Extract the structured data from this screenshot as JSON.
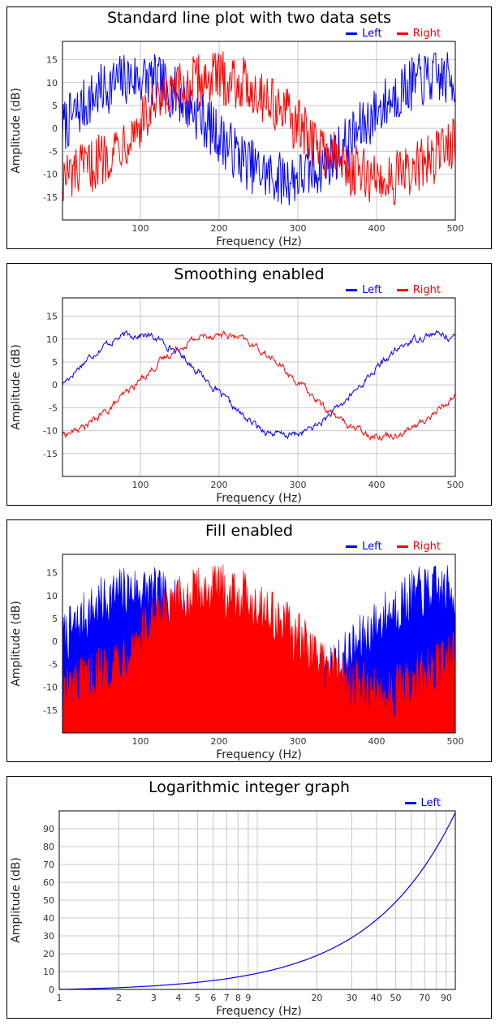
{
  "colors": {
    "left": "#0000ff",
    "right": "#ff0000",
    "grid": "#c8c8c8"
  },
  "chart_data": [
    {
      "type": "line",
      "title": "Standard line plot with two data sets",
      "xlabel": "Frequency (Hz)",
      "ylabel": "Amplitude (dB)",
      "xlim": [
        1,
        500
      ],
      "ylim": [
        -20,
        19
      ],
      "xticks": [
        100,
        200,
        300,
        400,
        500
      ],
      "yticks": [
        -15,
        -10,
        -5,
        0,
        5,
        10,
        15
      ],
      "legend": "top-right",
      "grid": true,
      "noise": "high",
      "series": [
        {
          "name": "Left",
          "color": "#0000ff",
          "model": {
            "amplitude": 11,
            "period": 380,
            "phase_deg": 0,
            "noise": 6
          }
        },
        {
          "name": "Right",
          "color": "#ff0000",
          "model": {
            "amplitude": 11,
            "period": 420,
            "phase_deg": -80,
            "noise": 6
          }
        }
      ]
    },
    {
      "type": "line",
      "title": "Smoothing enabled",
      "xlabel": "Frequency (Hz)",
      "ylabel": "Amplitude (dB)",
      "xlim": [
        1,
        500
      ],
      "ylim": [
        -20,
        19
      ],
      "xticks": [
        100,
        200,
        300,
        400,
        500
      ],
      "yticks": [
        -15,
        -10,
        -5,
        0,
        5,
        10,
        15
      ],
      "legend": "top-right",
      "grid": true,
      "series": [
        {
          "name": "Left",
          "color": "#0000ff",
          "model": {
            "amplitude": 11,
            "period": 380,
            "phase_deg": 0,
            "noise": 2
          }
        },
        {
          "name": "Right",
          "color": "#ff0000",
          "model": {
            "amplitude": 11,
            "period": 420,
            "phase_deg": -80,
            "noise": 2
          }
        }
      ]
    },
    {
      "type": "area",
      "title": "Fill enabled",
      "xlabel": "Frequency (Hz)",
      "ylabel": "Amplitude (dB)",
      "xlim": [
        1,
        500
      ],
      "ylim": [
        -20,
        19
      ],
      "xticks": [
        100,
        200,
        300,
        400,
        500
      ],
      "yticks": [
        -15,
        -10,
        -5,
        0,
        5,
        10,
        15
      ],
      "legend": "top-right",
      "grid": false,
      "series": [
        {
          "name": "Left",
          "color": "#0000ff",
          "model": {
            "amplitude": 11,
            "period": 380,
            "phase_deg": 0,
            "noise": 6
          }
        },
        {
          "name": "Right",
          "color": "#ff0000",
          "model": {
            "amplitude": 11,
            "period": 420,
            "phase_deg": -80,
            "noise": 6
          }
        }
      ]
    },
    {
      "type": "line",
      "title": "Logarithmic integer graph",
      "xlabel": "Frequency (Hz)",
      "ylabel": "Amplitude (dB)",
      "xscale": "log",
      "xlim": [
        1,
        100
      ],
      "ylim": [
        0,
        100
      ],
      "xticks": [
        1,
        2,
        3,
        4,
        5,
        6,
        7,
        8,
        9,
        20,
        30,
        40,
        50,
        70,
        90
      ],
      "yticks": [
        0,
        10,
        20,
        30,
        40,
        50,
        60,
        70,
        80,
        90
      ],
      "legend": "top-right",
      "grid": true,
      "series": [
        {
          "name": "Left",
          "color": "#0000ff",
          "x": [
            1,
            10,
            20,
            30,
            40,
            50,
            60,
            70,
            80,
            90,
            100
          ],
          "values": [
            0,
            8,
            19,
            28,
            37,
            46,
            56,
            66,
            76,
            86,
            99
          ]
        }
      ]
    }
  ]
}
